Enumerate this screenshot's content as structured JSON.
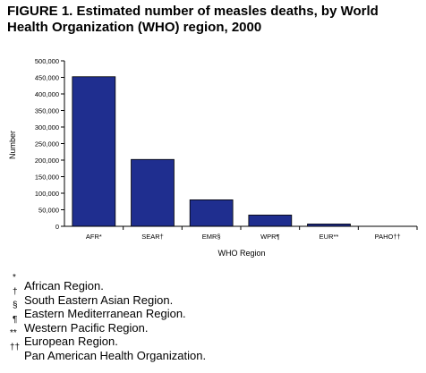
{
  "figure": {
    "title": "FIGURE 1. Estimated number of measles deaths, by World Health Organization (WHO) region, 2000"
  },
  "chart_data": {
    "type": "bar",
    "categories": [
      "AFR*",
      "SEAR†",
      "EMR§",
      "WPR¶",
      "EUR**",
      "PAHO††"
    ],
    "values": [
      452000,
      202000,
      80000,
      34000,
      7000,
      0
    ],
    "title": "",
    "xlabel": "WHO Region",
    "ylabel": "Number",
    "ylim": [
      0,
      500000
    ],
    "yticks": [
      "0",
      "50,000",
      "100,000",
      "150,000",
      "200,000",
      "250,000",
      "300,000",
      "350,000",
      "400,000",
      "450,000",
      "500,000"
    ],
    "grid": false,
    "bar_color": "#1f2e8f"
  },
  "footnotes": [
    {
      "mark": "*",
      "text": "African Region."
    },
    {
      "mark": "†",
      "text": "South Eastern Asian Region."
    },
    {
      "mark": "§",
      "text": "Eastern Mediterranean Region."
    },
    {
      "mark": "¶",
      "text": "Western Pacific Region."
    },
    {
      "mark": "**",
      "text": "European Region."
    },
    {
      "mark": "††",
      "text": "Pan American Health Organization."
    }
  ]
}
